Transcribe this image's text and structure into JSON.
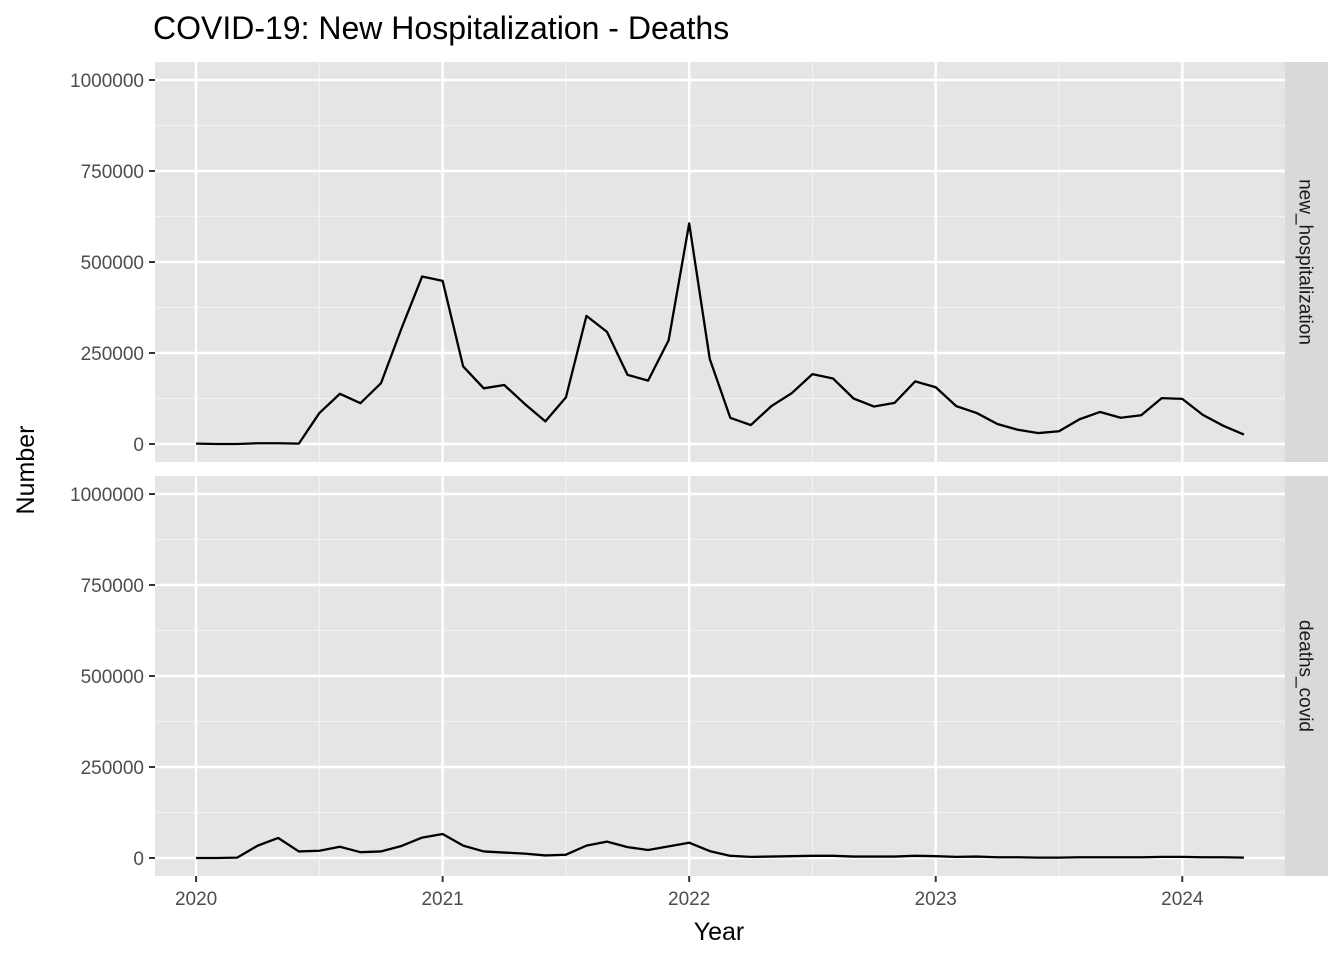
{
  "chart_data": {
    "type": "line",
    "title": "COVID-19: New Hospitalization - Deaths",
    "xlabel": "Year",
    "ylabel": "Number",
    "x_ticks": [
      "2020",
      "2021",
      "2022",
      "2023",
      "2024"
    ],
    "y_ticks": [
      "0",
      "250000",
      "500000",
      "750000",
      "1000000"
    ],
    "ylim": [
      0,
      1000000
    ],
    "xlim": [
      "2019-11",
      "2024-06"
    ],
    "grid": true,
    "panel_background": "#e5e5e5",
    "strip_background": "#d9d9d9",
    "line_color": "#000000",
    "x": [
      "2020-01",
      "2020-02",
      "2020-03",
      "2020-04",
      "2020-05",
      "2020-06",
      "2020-07",
      "2020-08",
      "2020-09",
      "2020-10",
      "2020-11",
      "2020-12",
      "2021-01",
      "2021-02",
      "2021-03",
      "2021-04",
      "2021-05",
      "2021-06",
      "2021-07",
      "2021-08",
      "2021-09",
      "2021-10",
      "2021-11",
      "2021-12",
      "2022-01",
      "2022-02",
      "2022-03",
      "2022-04",
      "2022-05",
      "2022-06",
      "2022-07",
      "2022-08",
      "2022-09",
      "2022-10",
      "2022-11",
      "2022-12",
      "2023-01",
      "2023-02",
      "2023-03",
      "2023-04",
      "2023-05",
      "2023-06",
      "2023-07",
      "2023-08",
      "2023-09",
      "2023-10",
      "2023-11",
      "2023-12",
      "2024-01",
      "2024-02",
      "2024-03",
      "2024-04"
    ],
    "panels": [
      {
        "name": "new_hospitalization",
        "values": [
          1000,
          0,
          0,
          2000,
          2000,
          1000,
          85000,
          138000,
          112000,
          167000,
          318000,
          460000,
          448000,
          213000,
          153000,
          162000,
          110000,
          62000,
          128000,
          352000,
          308000,
          190000,
          174000,
          285000,
          606000,
          234000,
          72000,
          52000,
          104000,
          140000,
          192000,
          180000,
          125000,
          103000,
          113000,
          172000,
          156000,
          104000,
          85000,
          55000,
          39000,
          30000,
          35000,
          68000,
          88000,
          72000,
          79000,
          126000,
          124000,
          80000,
          50000,
          26000
        ]
      },
      {
        "name": "deaths_covid",
        "values": [
          0,
          0,
          1000,
          34000,
          55000,
          18000,
          20000,
          31000,
          16000,
          18000,
          33000,
          56000,
          66000,
          34000,
          18000,
          15000,
          12000,
          7000,
          9000,
          34000,
          45000,
          30000,
          22000,
          32000,
          42000,
          19000,
          6000,
          3000,
          4000,
          5000,
          6000,
          6000,
          4000,
          4000,
          4000,
          6000,
          5000,
          3000,
          4000,
          2000,
          2000,
          1000,
          1000,
          2000,
          2000,
          2000,
          2000,
          3000,
          3000,
          2000,
          2000,
          1000
        ]
      }
    ]
  }
}
